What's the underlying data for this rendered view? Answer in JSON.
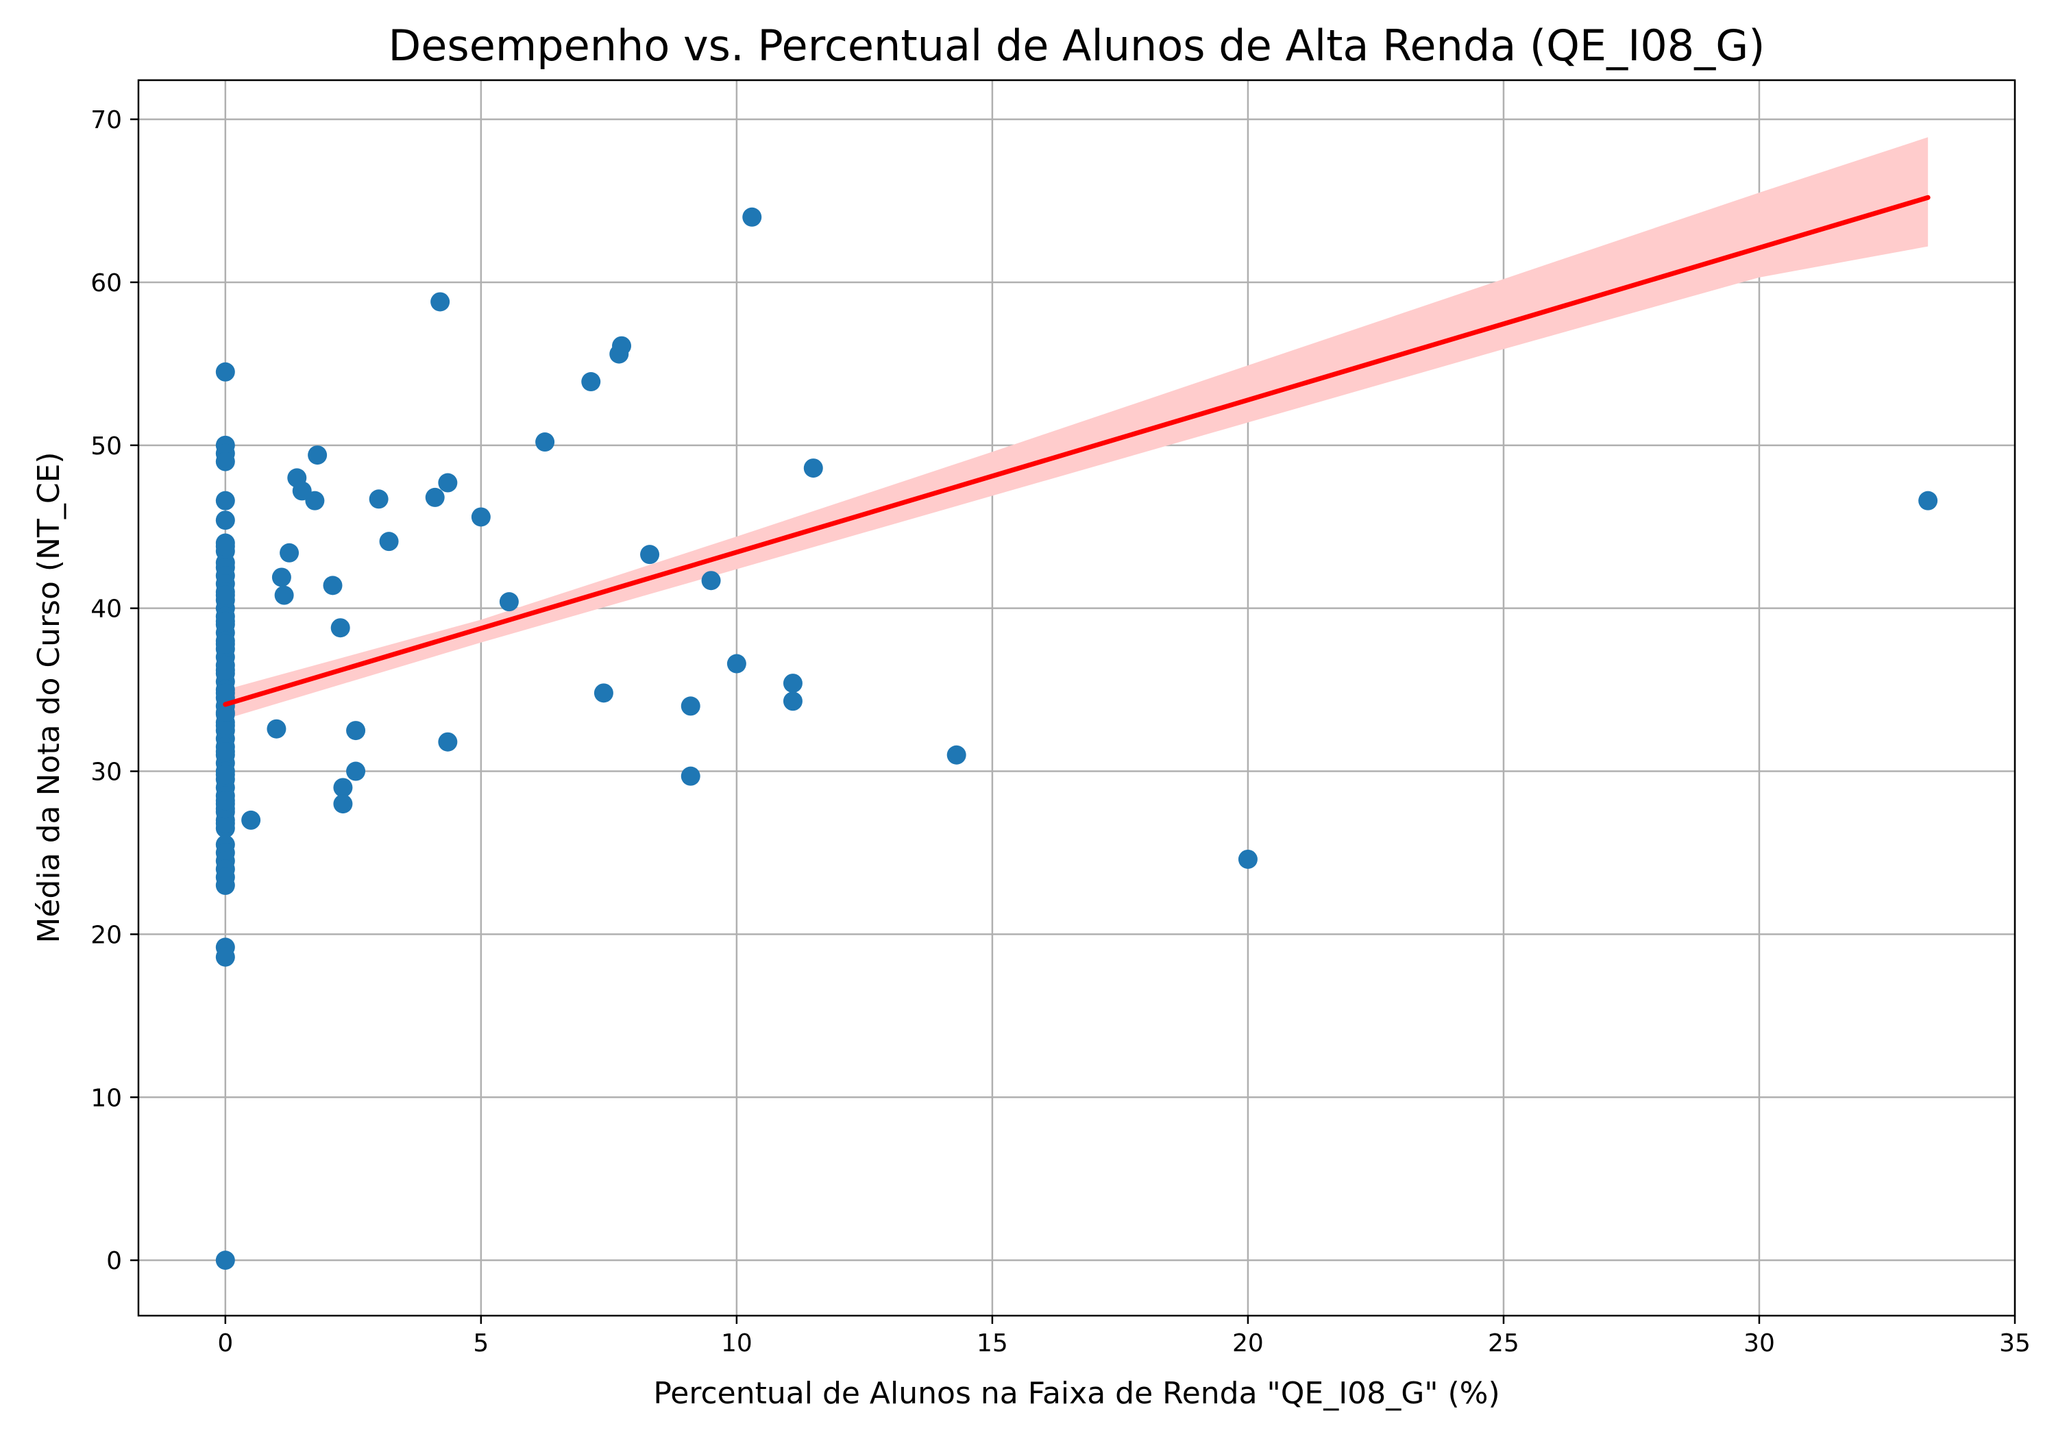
{
  "chart_data": {
    "type": "scatter",
    "title": "Desempenho vs. Percentual de Alunos de Alta Renda (QE_I08_G)",
    "xlabel": "Percentual de Alunos na Faixa de Renda \"QE_I08_G\" (%)",
    "ylabel": "Média da Nota do Curso (NT_CE)",
    "xlim": [
      -1.7,
      35
    ],
    "ylim": [
      -3.4,
      72.4
    ],
    "xticks": [
      0,
      5,
      10,
      15,
      20,
      25,
      30,
      35
    ],
    "yticks": [
      0,
      10,
      20,
      30,
      40,
      50,
      60,
      70
    ],
    "xtick_labels": [
      "0",
      "5",
      "10",
      "15",
      "20",
      "25",
      "30",
      "35"
    ],
    "ytick_labels": [
      "0",
      "10",
      "20",
      "30",
      "40",
      "50",
      "60",
      "70"
    ],
    "grid": true,
    "colors": {
      "points": "#1f77b4",
      "fit": "#ff0000",
      "band": "#ffcccc"
    },
    "series": [
      {
        "kind": "points",
        "x": [
          0,
          0,
          0,
          0,
          0,
          0,
          0,
          0,
          0,
          0,
          0,
          0,
          0,
          0,
          0,
          0,
          0,
          0,
          0,
          0,
          0,
          0,
          0,
          0,
          0,
          0,
          0,
          0,
          0,
          0,
          0,
          0,
          0,
          0,
          0,
          0,
          0,
          0,
          0,
          0,
          0,
          0,
          0,
          0,
          0,
          0,
          0,
          0,
          0,
          0,
          0,
          0,
          0,
          0,
          0,
          0,
          0,
          0,
          0,
          0,
          0,
          0,
          0,
          0,
          0.5,
          1.0,
          1.1,
          1.15,
          1.25,
          1.4,
          1.5,
          1.75,
          1.8,
          2.1,
          2.25,
          2.3,
          2.3,
          2.55,
          2.55,
          3.0,
          3.2,
          4.1,
          4.2,
          4.35,
          4.35,
          5.0,
          5.55,
          6.25,
          7.15,
          7.4,
          7.7,
          7.75,
          8.3,
          9.1,
          9.1,
          9.5,
          10.0,
          10.3,
          11.1,
          11.1,
          11.5,
          14.3,
          20.0,
          33.3
        ],
        "y": [
          54.5,
          50.0,
          49.5,
          49.0,
          46.6,
          45.4,
          44.0,
          43.5,
          42.8,
          42.5,
          42.0,
          41.5,
          41.0,
          40.5,
          40.0,
          39.5,
          39.0,
          38.5,
          38.0,
          37.5,
          37.0,
          36.5,
          36.0,
          35.5,
          35.0,
          34.5,
          34.0,
          33.5,
          33.0,
          32.5,
          32.0,
          31.5,
          31.0,
          30.5,
          30.0,
          29.5,
          29.0,
          28.5,
          28.0,
          27.5,
          27.0,
          26.5,
          25.5,
          25.0,
          24.5,
          24.0,
          23.5,
          23.0,
          19.2,
          18.6,
          0.0,
          26.8,
          27.7,
          28.2,
          29.8,
          31.2,
          32.8,
          33.6,
          34.8,
          36.2,
          37.8,
          39.2,
          40.8,
          43.8,
          27.0,
          32.6,
          41.9,
          40.8,
          43.4,
          48.0,
          47.2,
          46.6,
          49.4,
          41.4,
          38.8,
          29.0,
          28.0,
          32.5,
          30.0,
          46.7,
          44.1,
          46.8,
          58.8,
          47.7,
          31.8,
          45.6,
          40.4,
          50.2,
          53.9,
          34.8,
          55.6,
          56.1,
          43.3,
          34.0,
          29.7,
          41.7,
          36.6,
          64.0,
          35.4,
          34.3,
          48.6,
          31.0,
          24.6,
          46.6
        ]
      },
      {
        "kind": "regression_line",
        "x": [
          0,
          33.3
        ],
        "y": [
          34.1,
          65.2
        ]
      },
      {
        "kind": "confidence_band",
        "x": [
          0,
          5,
          10,
          15,
          20,
          25,
          30,
          33.3
        ],
        "upper": [
          35.0,
          39.3,
          44.4,
          49.6,
          54.9,
          60.2,
          65.5,
          68.9
        ],
        "lower": [
          33.2,
          37.9,
          42.4,
          46.9,
          51.4,
          55.9,
          60.3,
          62.2
        ]
      }
    ]
  }
}
